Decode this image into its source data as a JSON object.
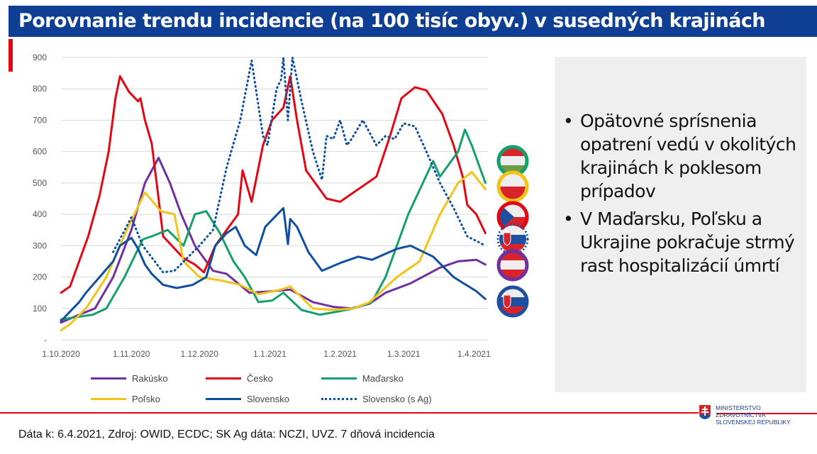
{
  "title": "Porovnanie trendu incidencie (na 100 tisíc obyv.) v susedných krajinách",
  "bullets": [
    "Opätovné sprísnenia opatrení vedú v okolitých krajinách k poklesom prípadov",
    "V Maďarsku, Poľsku a Ukrajine pokračuje strmý rast hospitalizácií úmrtí"
  ],
  "footer": "Dáta k: 6.4.2021, Zdroj: OWID, ECDC; SK Ag dáta: NCZI, UVZ. 7 dňová incidencia",
  "logo": {
    "line1": "MINISTERSTVO",
    "line2": "ZDRAVOTNÍCTVA",
    "line3": "SLOVENSKEJ REPUBLIKY"
  },
  "flags": [
    "hungary-flag",
    "poland-flag",
    "czechia-flag",
    "slovakia-ag-flag",
    "austria-flag",
    "slovakia-flag"
  ],
  "chart_data": {
    "type": "line",
    "x_unit": "days since 1.10.2020",
    "ylim": [
      0,
      900
    ],
    "yticks": [
      0,
      100,
      200,
      300,
      400,
      500,
      600,
      700,
      800,
      900
    ],
    "ytick_labels": [
      "-",
      "100",
      "200",
      "300",
      "400",
      "500",
      "600",
      "700",
      "800",
      "900"
    ],
    "xticks": [
      {
        "day": 0,
        "label": "1.10.2020"
      },
      {
        "day": 31,
        "label": "1.11.2020"
      },
      {
        "day": 61,
        "label": "1.12.2020"
      },
      {
        "day": 92,
        "label": "1.1.2021"
      },
      {
        "day": 123,
        "label": "1.2.2021"
      },
      {
        "day": 151,
        "label": "1.3.2021"
      },
      {
        "day": 182,
        "label": "1.4.2021"
      }
    ],
    "grid": true,
    "legend_position": "bottom",
    "series": [
      {
        "name": "Rakúsko",
        "color": "#7030a0",
        "dash": false,
        "points": [
          [
            0,
            55
          ],
          [
            8,
            80
          ],
          [
            15,
            100
          ],
          [
            23,
            200
          ],
          [
            31,
            350
          ],
          [
            37,
            500
          ],
          [
            43,
            580
          ],
          [
            48,
            500
          ],
          [
            53,
            400
          ],
          [
            59,
            300
          ],
          [
            67,
            220
          ],
          [
            73,
            210
          ],
          [
            83,
            150
          ],
          [
            93,
            155
          ],
          [
            101,
            160
          ],
          [
            111,
            120
          ],
          [
            120,
            105
          ],
          [
            128,
            100
          ],
          [
            136,
            115
          ],
          [
            143,
            150
          ],
          [
            154,
            180
          ],
          [
            167,
            230
          ],
          [
            175,
            250
          ],
          [
            183,
            255
          ],
          [
            187,
            240
          ]
        ]
      },
      {
        "name": "Česko",
        "color": "#e30613",
        "dash": false,
        "points": [
          [
            0,
            150
          ],
          [
            4,
            170
          ],
          [
            8,
            250
          ],
          [
            12,
            330
          ],
          [
            17,
            460
          ],
          [
            21,
            600
          ],
          [
            24,
            770
          ],
          [
            26,
            840
          ],
          [
            30,
            790
          ],
          [
            34,
            760
          ],
          [
            35,
            770
          ],
          [
            37,
            700
          ],
          [
            40,
            625
          ],
          [
            43,
            450
          ],
          [
            45,
            330
          ],
          [
            54,
            260
          ],
          [
            59,
            240
          ],
          [
            63,
            215
          ],
          [
            68,
            300
          ],
          [
            78,
            400
          ],
          [
            80,
            540
          ],
          [
            84,
            440
          ],
          [
            89,
            620
          ],
          [
            93,
            700
          ],
          [
            98,
            740
          ],
          [
            101,
            840
          ],
          [
            104,
            700
          ],
          [
            108,
            540
          ],
          [
            117,
            450
          ],
          [
            123,
            440
          ],
          [
            131,
            480
          ],
          [
            139,
            520
          ],
          [
            145,
            650
          ],
          [
            150,
            770
          ],
          [
            156,
            805
          ],
          [
            161,
            795
          ],
          [
            168,
            720
          ],
          [
            173,
            620
          ],
          [
            177,
            520
          ],
          [
            179,
            430
          ],
          [
            183,
            400
          ],
          [
            187,
            340
          ]
        ]
      },
      {
        "name": "Maďarsko",
        "color": "#14a06b",
        "dash": false,
        "points": [
          [
            0,
            65
          ],
          [
            14,
            80
          ],
          [
            20,
            100
          ],
          [
            28,
            200
          ],
          [
            36,
            320
          ],
          [
            40,
            330
          ],
          [
            47,
            350
          ],
          [
            54,
            300
          ],
          [
            59,
            400
          ],
          [
            64,
            410
          ],
          [
            70,
            340
          ],
          [
            76,
            250
          ],
          [
            81,
            200
          ],
          [
            87,
            120
          ],
          [
            93,
            125
          ],
          [
            98,
            150
          ],
          [
            106,
            95
          ],
          [
            114,
            80
          ],
          [
            122,
            90
          ],
          [
            129,
            100
          ],
          [
            137,
            120
          ],
          [
            143,
            200
          ],
          [
            153,
            400
          ],
          [
            164,
            570
          ],
          [
            167,
            520
          ],
          [
            175,
            600
          ],
          [
            178,
            670
          ],
          [
            181,
            620
          ],
          [
            187,
            500
          ]
        ]
      },
      {
        "name": "Poľsko",
        "color": "#f2c419",
        "dash": false,
        "points": [
          [
            0,
            30
          ],
          [
            4,
            50
          ],
          [
            11,
            100
          ],
          [
            20,
            200
          ],
          [
            29,
            350
          ],
          [
            37,
            470
          ],
          [
            44,
            410
          ],
          [
            50,
            400
          ],
          [
            54,
            250
          ],
          [
            61,
            200
          ],
          [
            70,
            190
          ],
          [
            79,
            175
          ],
          [
            87,
            145
          ],
          [
            97,
            160
          ],
          [
            101,
            170
          ],
          [
            111,
            100
          ],
          [
            120,
            95
          ],
          [
            129,
            100
          ],
          [
            136,
            120
          ],
          [
            148,
            200
          ],
          [
            158,
            250
          ],
          [
            167,
            400
          ],
          [
            175,
            500
          ],
          [
            181,
            535
          ],
          [
            187,
            480
          ]
        ]
      },
      {
        "name": "Slovensko",
        "color": "#0f4fa0",
        "dash": false,
        "points": [
          [
            0,
            60
          ],
          [
            8,
            120
          ],
          [
            11,
            150
          ],
          [
            17,
            200
          ],
          [
            23,
            250
          ],
          [
            26,
            300
          ],
          [
            31,
            325
          ],
          [
            34,
            290
          ],
          [
            37,
            240
          ],
          [
            40,
            210
          ],
          [
            45,
            175
          ],
          [
            51,
            165
          ],
          [
            58,
            175
          ],
          [
            64,
            200
          ],
          [
            68,
            300
          ],
          [
            73,
            340
          ],
          [
            77,
            360
          ],
          [
            81,
            300
          ],
          [
            86,
            270
          ],
          [
            90,
            360
          ],
          [
            98,
            420
          ],
          [
            100,
            305
          ],
          [
            101,
            385
          ],
          [
            104,
            360
          ],
          [
            109,
            280
          ],
          [
            115,
            220
          ],
          [
            123,
            245
          ],
          [
            131,
            265
          ],
          [
            137,
            255
          ],
          [
            148,
            290
          ],
          [
            154,
            300
          ],
          [
            164,
            265
          ],
          [
            173,
            200
          ],
          [
            183,
            155
          ],
          [
            187,
            130
          ]
        ]
      },
      {
        "name": "Slovensko (s Ag)",
        "color": "#0f4fa0",
        "dash": true,
        "points": [
          [
            23,
            280
          ],
          [
            31,
            390
          ],
          [
            36,
            300
          ],
          [
            45,
            215
          ],
          [
            50,
            220
          ],
          [
            61,
            300
          ],
          [
            67,
            350
          ],
          [
            73,
            550
          ],
          [
            79,
            700
          ],
          [
            84,
            890
          ],
          [
            89,
            650
          ],
          [
            91,
            620
          ],
          [
            95,
            800
          ],
          [
            97,
            830
          ],
          [
            98,
            900
          ],
          [
            100,
            700
          ],
          [
            102,
            900
          ],
          [
            106,
            760
          ],
          [
            111,
            600
          ],
          [
            115,
            510
          ],
          [
            117,
            650
          ],
          [
            120,
            640
          ],
          [
            123,
            700
          ],
          [
            126,
            620
          ],
          [
            128,
            640
          ],
          [
            133,
            700
          ],
          [
            139,
            620
          ],
          [
            143,
            650
          ],
          [
            147,
            640
          ],
          [
            151,
            690
          ],
          [
            156,
            680
          ],
          [
            161,
            600
          ],
          [
            167,
            500
          ],
          [
            173,
            420
          ],
          [
            179,
            330
          ],
          [
            187,
            300
          ]
        ]
      }
    ]
  }
}
